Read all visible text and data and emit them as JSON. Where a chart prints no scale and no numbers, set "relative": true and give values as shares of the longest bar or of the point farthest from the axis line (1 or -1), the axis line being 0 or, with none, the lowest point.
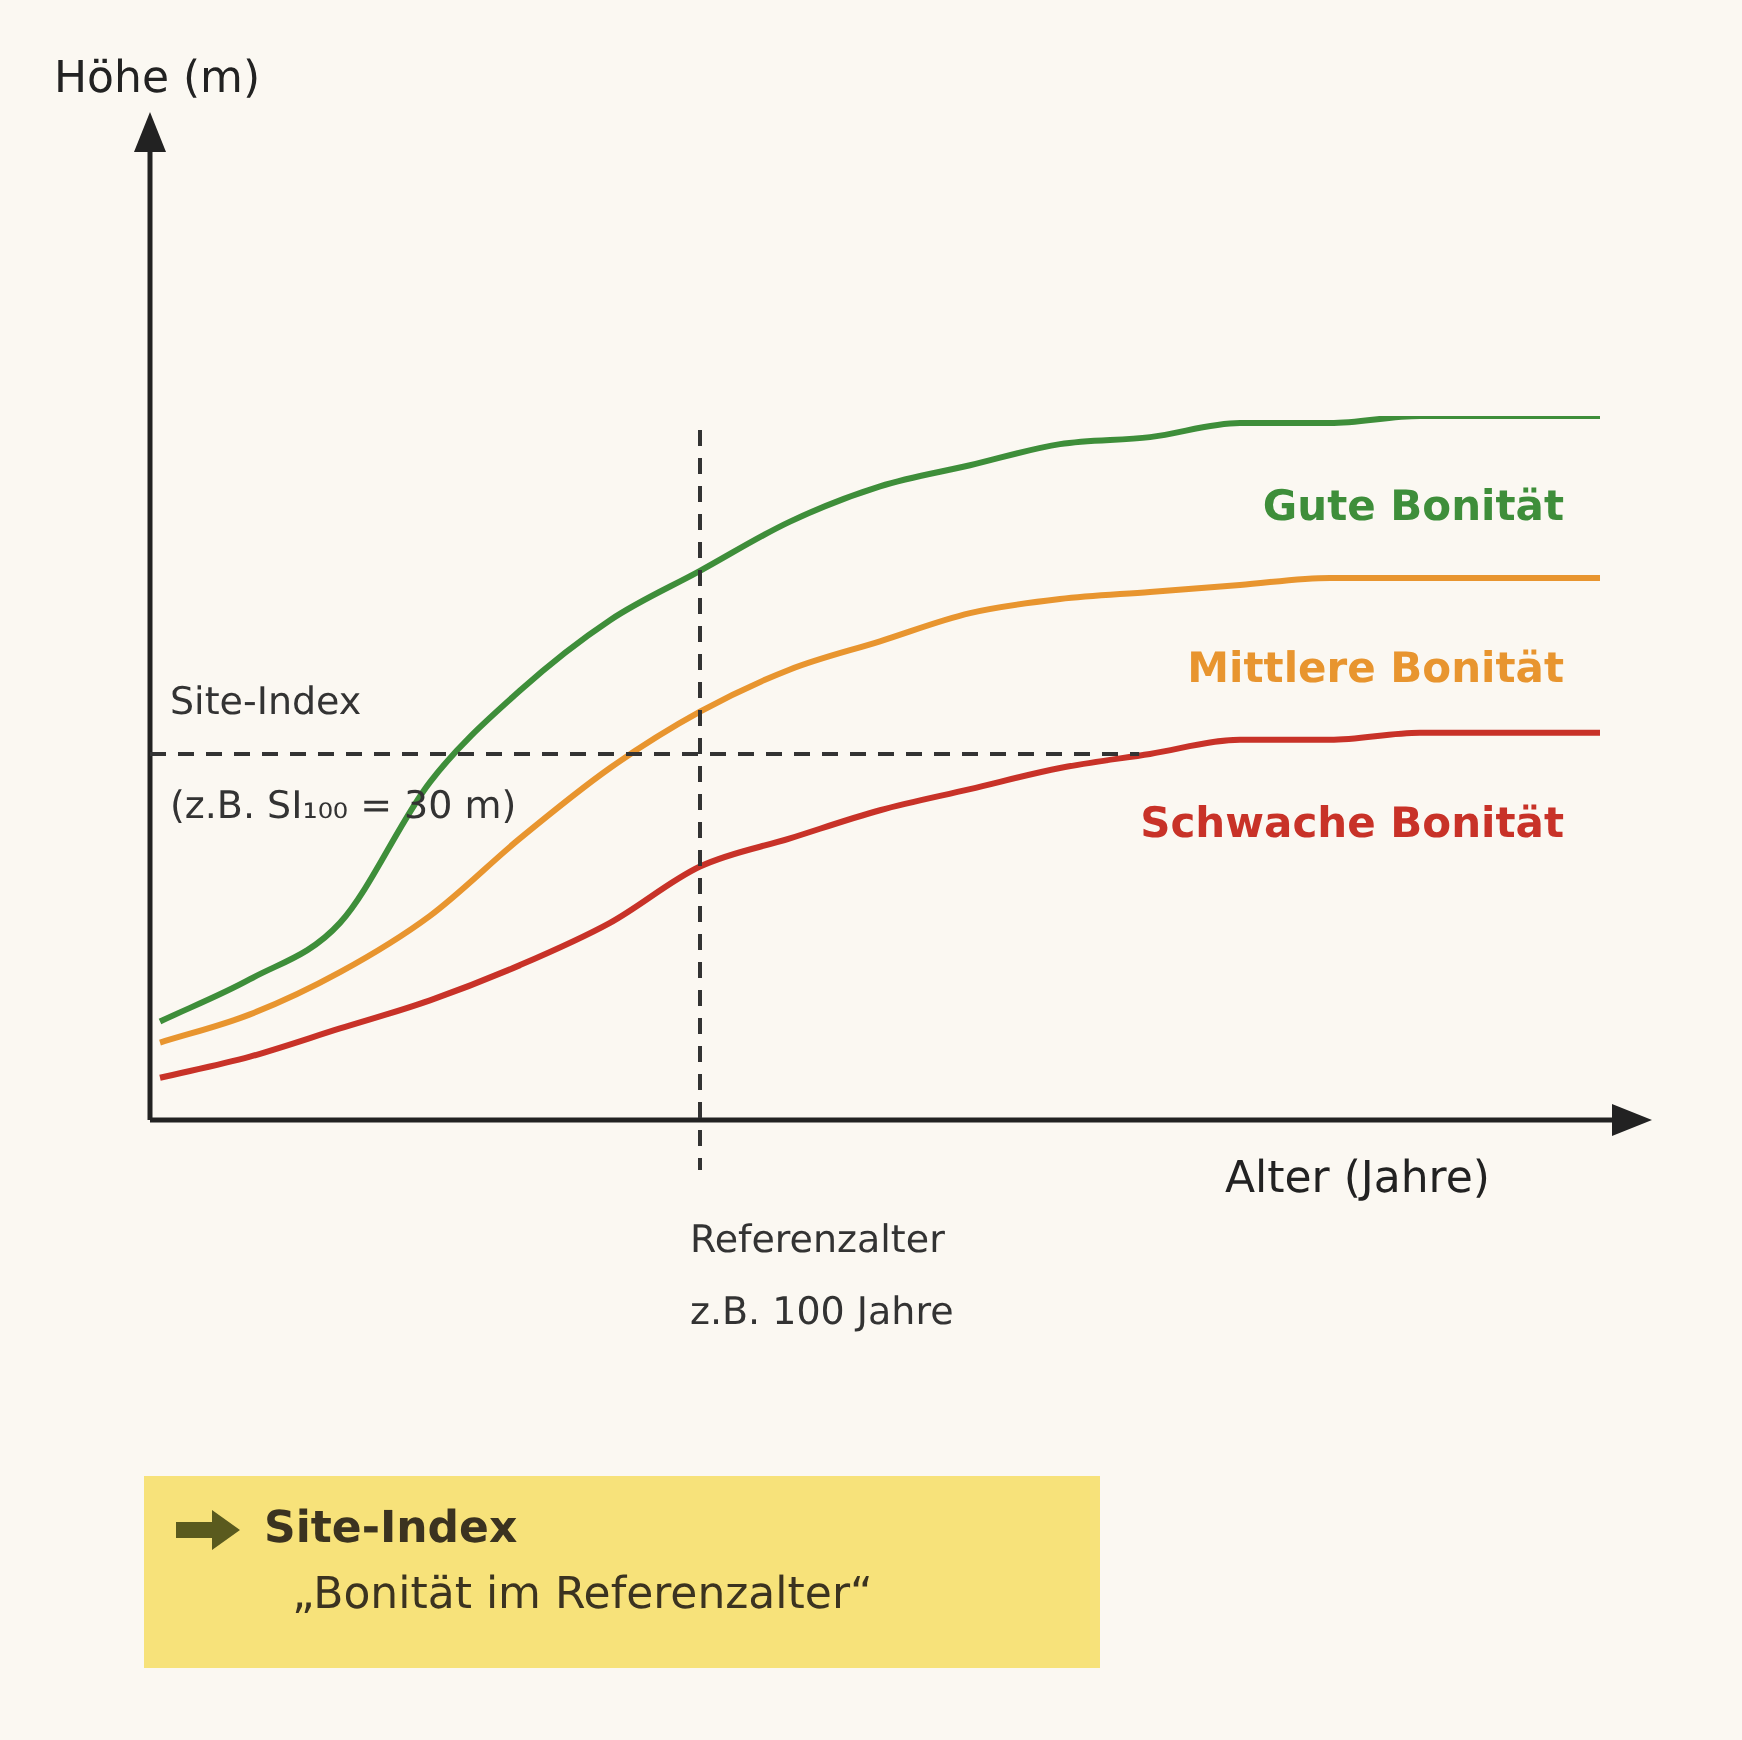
{
  "chart_data": {
    "type": "line",
    "relative": true,
    "xlabel": "Alter (Jahre)",
    "categories": [
      null,
      null,
      null,
      null,
      null,
      null,
      null,
      null,
      null,
      null,
      null,
      null,
      null,
      null,
      null,
      null,
      null
    ],
    "series": [
      {
        "name": "Gute Bonität",
        "color": "#3e8e3a",
        "values": [
          0.14,
          0.2,
          0.28,
          0.48,
          0.61,
          0.71,
          0.78,
          0.85,
          0.9,
          0.93,
          0.96,
          0.97,
          0.99,
          0.99,
          1,
          1,
          1
        ]
      },
      {
        "name": "Mittlere Bonität",
        "color": "#e8952f",
        "values": [
          0.11,
          0.15,
          0.21,
          0.29,
          0.4,
          0.5,
          0.58,
          0.64,
          0.68,
          0.72,
          0.74,
          0.75,
          0.76,
          0.77,
          0.77,
          0.77,
          0.77
        ]
      },
      {
        "name": "Schwache Bonität",
        "color": "#c83228",
        "values": [
          0.06,
          0.09,
          0.13,
          0.17,
          0.22,
          0.28,
          0.36,
          0.4,
          0.44,
          0.47,
          0.5,
          0.52,
          0.54,
          0.54,
          0.55,
          0.55,
          0.55
        ]
      }
    ],
    "ref_lines": [
      {
        "axis": "y",
        "value": 0.52,
        "color": "#333333",
        "line_style": "dashed"
      }
    ],
    "annotations": [
      "Site-Index",
      "(z.B. SI₁₀₀ = 30 m)",
      "Referenzalter",
      "z.B. 100 Jahre",
      "Site-Index",
      "„Bonität im Referenzalter“",
      "Höhe (m)"
    ],
    "legend": false,
    "marker": "none",
    "line_style": "solid"
  }
}
